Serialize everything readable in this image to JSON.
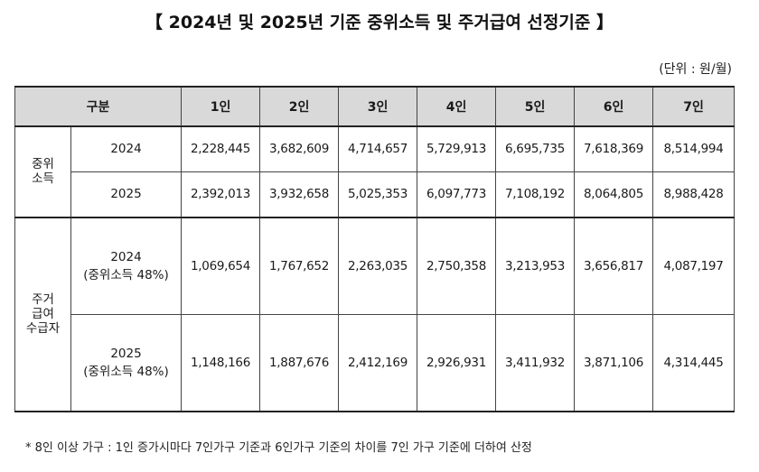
{
  "title": "【 2024년 및 2025년 기준 중위소득 및 주거급여 선정기준 】",
  "unit": "(단위 : 원/월)",
  "table": {
    "header": [
      "구분",
      "1인",
      "2인",
      "3인",
      "4인",
      "5인",
      "6인",
      "7인"
    ],
    "groups": [
      {
        "label": "중위\n소득",
        "rows": [
          {
            "year": "2024",
            "sub": "",
            "values": [
              "2,228,445",
              "3,682,609",
              "4,714,657",
              "5,729,913",
              "6,695,735",
              "7,618,369",
              "8,514,994"
            ]
          },
          {
            "year": "2025",
            "sub": "",
            "values": [
              "2,392,013",
              "3,932,658",
              "5,025,353",
              "6,097,773",
              "7,108,192",
              "8,064,805",
              "8,988,428"
            ]
          }
        ]
      },
      {
        "label": "주거\n급여\n수급자",
        "rows": [
          {
            "year": "2024",
            "sub": "(중위소득 48%)",
            "values": [
              "1,069,654",
              "1,767,652",
              "2,263,035",
              "2,750,358",
              "3,213,953",
              "3,656,817",
              "4,087,197"
            ]
          },
          {
            "year": "2025",
            "sub": "(중위소득 48%)",
            "values": [
              "1,148,166",
              "1,887,676",
              "2,412,169",
              "2,926,931",
              "3,411,932",
              "3,871,106",
              "4,314,445"
            ]
          }
        ]
      }
    ]
  },
  "footnote": "* 8인 이상 가구 : 1인 증가시마다 7인가구 기준과 6인가구 기준의 차이를 7인 가구 기준에 더하여 산정"
}
